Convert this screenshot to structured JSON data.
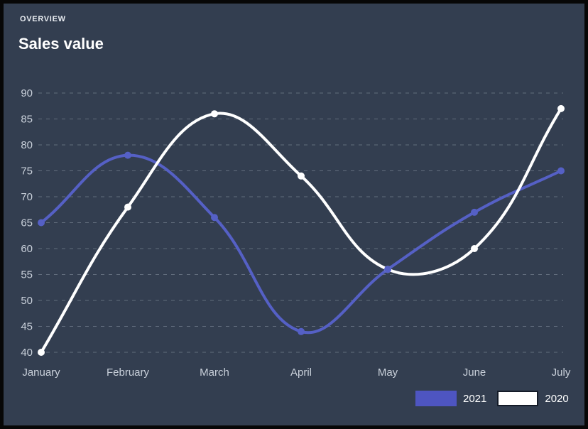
{
  "header": {
    "overview_label": "OVERVIEW",
    "title": "Sales value"
  },
  "chart_data": {
    "type": "line",
    "title": "Sales value",
    "x": [
      "January",
      "February",
      "March",
      "April",
      "May",
      "June",
      "July"
    ],
    "series": [
      {
        "name": "2021",
        "color": "#5560C5",
        "point_color": "#5560C5",
        "values": [
          65,
          78,
          66,
          44,
          56,
          67,
          75
        ]
      },
      {
        "name": "2020",
        "color": "#FFFFFF",
        "point_color": "#FFFFFF",
        "values": [
          40,
          68,
          86,
          74,
          56,
          60,
          87
        ]
      }
    ],
    "xlabel": "",
    "ylabel": "",
    "ylim": [
      40,
      90
    ],
    "ytick_step": 5,
    "grid": "horizontal dashed",
    "legend_position": "bottom-right",
    "line_tension": 0.4
  },
  "legend": [
    {
      "label": "2021",
      "swatch_color": "#4E55C1",
      "outlined": false
    },
    {
      "label": "2020",
      "swatch_color": "#FFFFFF",
      "outlined": true
    }
  ],
  "colors": {
    "background": "#333E50",
    "frame_border": "#070707",
    "grid_line": "#8A94A3",
    "axis_text": "#C9D0DA",
    "title_text": "#FFFFFF"
  }
}
